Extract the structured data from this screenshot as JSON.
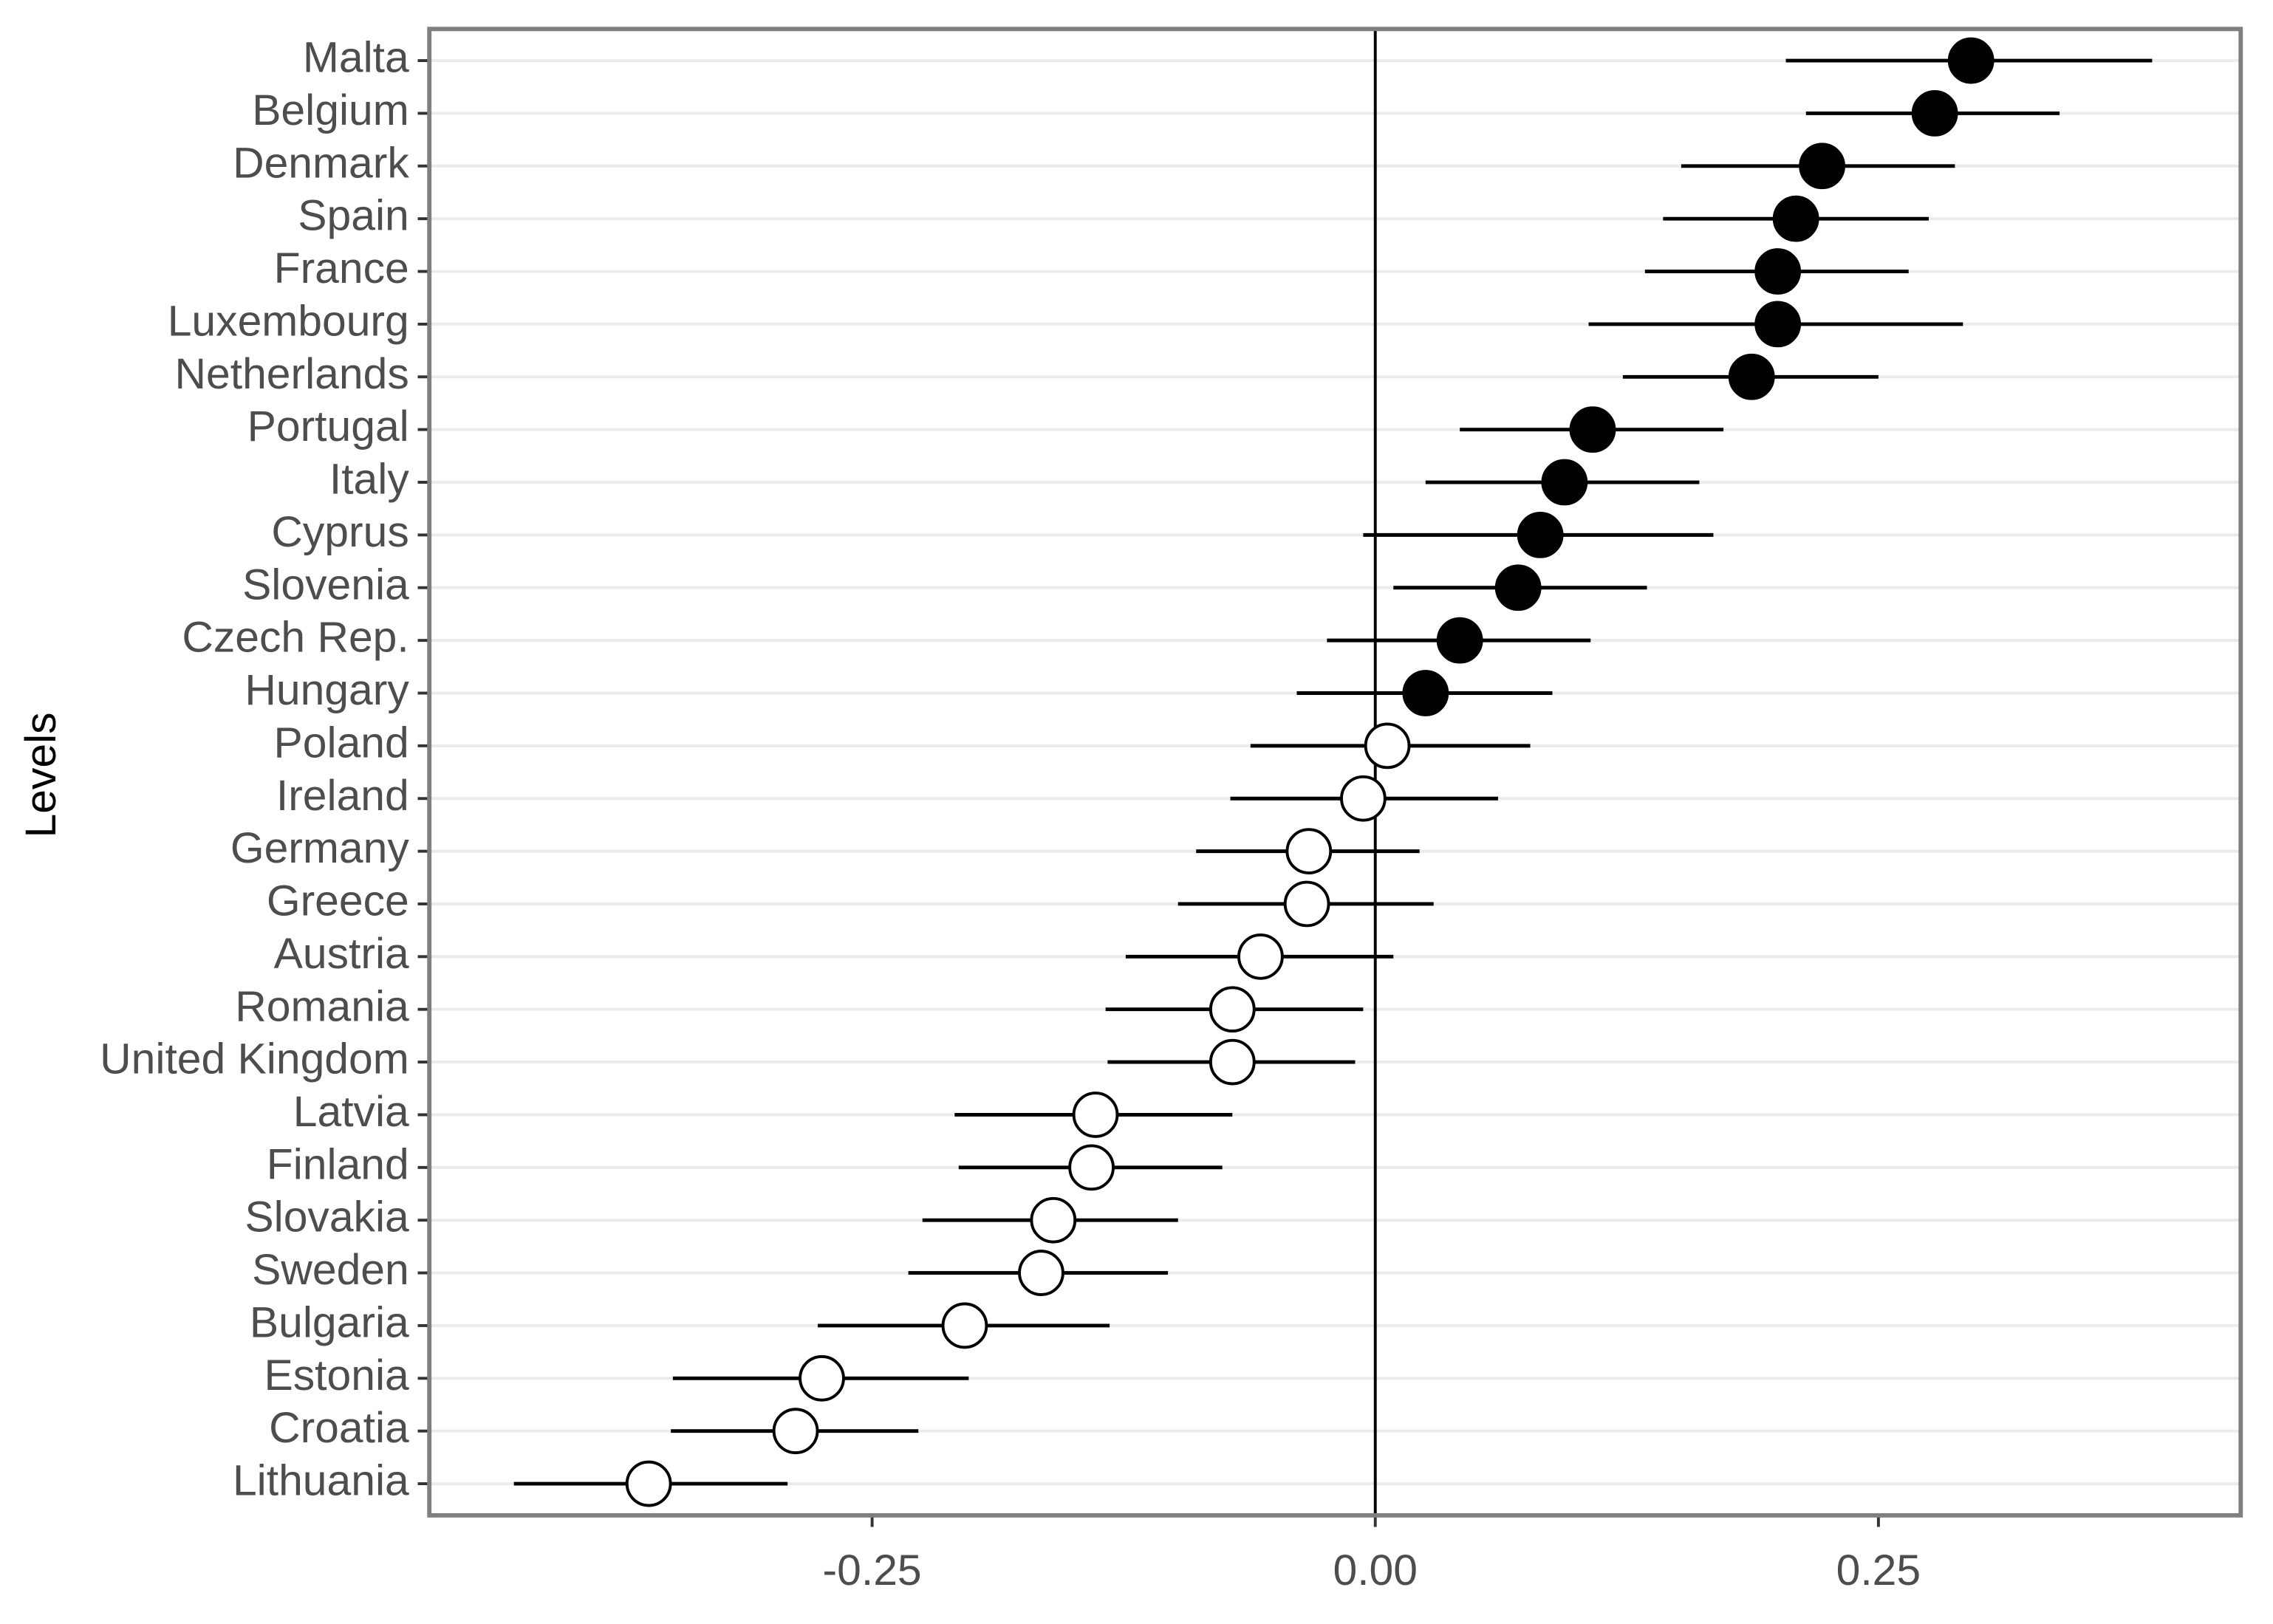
{
  "chart_data": {
    "type": "dot-errorbar",
    "y_label": "Levels",
    "categories": [
      "Malta",
      "Belgium",
      "Denmark",
      "Spain",
      "France",
      "Luxembourg",
      "Netherlands",
      "Portugal",
      "Italy",
      "Cyprus",
      "Slovenia",
      "Czech Rep.",
      "Hungary",
      "Poland",
      "Ireland",
      "Germany",
      "Greece",
      "Austria",
      "Romania",
      "United Kingdom",
      "Latvia",
      "Finland",
      "Slovakia",
      "Sweden",
      "Bulgaria",
      "Estonia",
      "Croatia",
      "Lithuania"
    ],
    "values": [
      0.296,
      0.278,
      0.222,
      0.209,
      0.2,
      0.2,
      0.187,
      0.108,
      0.094,
      0.082,
      0.071,
      0.042,
      0.025,
      0.006,
      -0.006,
      -0.033,
      -0.034,
      -0.057,
      -0.071,
      -0.071,
      -0.139,
      -0.141,
      -0.16,
      -0.166,
      -0.204,
      -0.275,
      -0.288,
      -0.361
    ],
    "lower": [
      0.204,
      0.214,
      0.152,
      0.143,
      0.134,
      0.106,
      0.123,
      0.042,
      0.025,
      -0.006,
      0.009,
      -0.024,
      -0.039,
      -0.062,
      -0.072,
      -0.089,
      -0.098,
      -0.124,
      -0.134,
      -0.133,
      -0.209,
      -0.207,
      -0.225,
      -0.232,
      -0.277,
      -0.349,
      -0.35,
      -0.428
    ],
    "upper": [
      0.386,
      0.34,
      0.288,
      0.275,
      0.265,
      0.292,
      0.25,
      0.173,
      0.161,
      0.168,
      0.135,
      0.107,
      0.088,
      0.077,
      0.061,
      0.022,
      0.029,
      0.009,
      -0.006,
      -0.01,
      -0.071,
      -0.076,
      -0.098,
      -0.103,
      -0.132,
      -0.202,
      -0.227,
      -0.292
    ],
    "filled": [
      true,
      true,
      true,
      true,
      true,
      true,
      true,
      true,
      true,
      true,
      true,
      true,
      true,
      false,
      false,
      false,
      false,
      false,
      false,
      false,
      false,
      false,
      false,
      false,
      false,
      false,
      false,
      false
    ],
    "color": "#000000",
    "xlim": [
      -0.47,
      0.43
    ],
    "xticks": [
      -0.25,
      {
        "value": 0,
        "label": "0.00"
      },
      0.25
    ],
    "vline": 0,
    "grid": true
  }
}
